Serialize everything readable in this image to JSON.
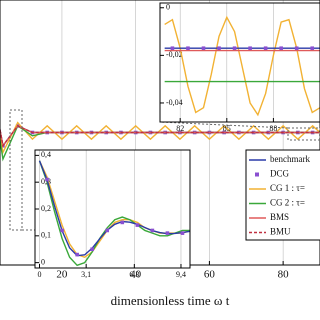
{
  "chart_data": [
    {
      "type": "line",
      "xlabel": "dimensionless time ω t",
      "xlim": [
        3.2,
        90
      ],
      "ylim": [
        -0.2,
        0.2
      ],
      "xticks": [
        20,
        40,
        60,
        80
      ],
      "legend": "lower right",
      "x": [
        0,
        4,
        8,
        12,
        16,
        20,
        24,
        28,
        32,
        36,
        40,
        44,
        48,
        52,
        56,
        60,
        64,
        68,
        72,
        76,
        80,
        84,
        88,
        92
      ],
      "series": [
        {
          "name": "benchmark",
          "color": "#2a3aa8",
          "values": [
            0.1,
            -0.02,
            0.01,
            0,
            0,
            0,
            0,
            0,
            0,
            0,
            0,
            0,
            0,
            0,
            0,
            0,
            0,
            0,
            0,
            0,
            0,
            0,
            0,
            0
          ]
        },
        {
          "name": "DCG",
          "color": "#8a4fd0",
          "marker": "square",
          "values": [
            0.1,
            -0.02,
            0.01,
            0,
            0,
            0,
            0,
            0,
            0,
            0,
            0,
            0,
            0,
            0,
            0,
            0,
            0,
            0,
            0,
            0,
            0,
            0,
            0,
            0
          ]
        },
        {
          "name": "CG 1 : τ=",
          "color": "#f2b233",
          "values": [
            0.1,
            -0.03,
            0.015,
            -0.01,
            0.01,
            -0.01,
            0.01,
            -0.01,
            0.01,
            -0.01,
            0.01,
            -0.01,
            0.01,
            -0.01,
            0.01,
            -0.01,
            0.01,
            -0.01,
            0.01,
            -0.01,
            0.01,
            -0.01,
            0.01,
            -0.01
          ]
        },
        {
          "name": "CG 2 : τ=",
          "color": "#3aa83a",
          "values": [
            0.1,
            -0.04,
            0.01,
            -0.005,
            0,
            0,
            0,
            0,
            0,
            0,
            0,
            0,
            0,
            0,
            0,
            0,
            0,
            0,
            0,
            0,
            0,
            0,
            0,
            0
          ]
        },
        {
          "name": "BMS",
          "color": "#e05a5a",
          "values": [
            0.1,
            -0.02,
            0.01,
            0,
            0,
            0,
            0,
            0,
            0,
            0,
            0,
            0,
            0,
            0,
            0,
            0,
            0,
            0,
            0,
            0,
            0,
            0,
            0,
            0
          ]
        },
        {
          "name": "BMU",
          "color": "#c03040",
          "dash": true,
          "values": [
            0.1,
            -0.02,
            0.01,
            0,
            0,
            0,
            0,
            0,
            0,
            0,
            0,
            0,
            0,
            0,
            0,
            0,
            0,
            0,
            0,
            0,
            0,
            0,
            0,
            0
          ]
        }
      ]
    },
    {
      "type": "line",
      "xlim": [
        -0.3,
        10
      ],
      "ylim": [
        -0.02,
        0.42
      ],
      "xticks": [
        0,
        {
          "value": 3.1,
          "label": "3,1"
        },
        {
          "value": 6.3,
          "label": "6,3"
        },
        {
          "value": 9.4,
          "label": "9,4"
        }
      ],
      "yticks": [
        0,
        {
          "value": 0.1,
          "label": "0,1"
        },
        {
          "value": 0.2,
          "label": "0,2"
        },
        {
          "value": 0.3,
          "label": "0,3"
        },
        {
          "value": 0.4,
          "label": "0,4"
        }
      ],
      "x": [
        0,
        0.5,
        1,
        1.5,
        2,
        2.5,
        3,
        3.5,
        4,
        4.5,
        5,
        5.5,
        6,
        6.5,
        7,
        7.5,
        8,
        8.5,
        9,
        9.5,
        10
      ],
      "series": [
        {
          "color": "#f2b233",
          "values": [
            0.38,
            0.32,
            0.23,
            0.14,
            0.07,
            0.03,
            0.02,
            0.04,
            0.08,
            0.12,
            0.15,
            0.16,
            0.16,
            0.15,
            0.13,
            0.12,
            0.11,
            0.11,
            0.11,
            0.11,
            0.12
          ]
        },
        {
          "color": "#3aa83a",
          "values": [
            0.38,
            0.3,
            0.19,
            0.09,
            0.02,
            -0.01,
            0,
            0.04,
            0.09,
            0.13,
            0.16,
            0.17,
            0.16,
            0.14,
            0.12,
            0.11,
            0.1,
            0.1,
            0.11,
            0.12,
            0.12
          ]
        },
        {
          "color": "#2a3aa8",
          "values": [
            0.38,
            0.309,
            0.211,
            0.119,
            0.055,
            0.026,
            0.029,
            0.054,
            0.089,
            0.121,
            0.143,
            0.153,
            0.151,
            0.143,
            0.131,
            0.119,
            0.112,
            0.108,
            0.109,
            0.112,
            0.117
          ]
        },
        {
          "color": "#8a4fd0",
          "marker": "square",
          "x": [
            0.5,
            1.5,
            2.5,
            3.5,
            4.5,
            5.5,
            6.5,
            7.5,
            8.5,
            9.5
          ],
          "values": [
            0.31,
            0.12,
            0.03,
            0.05,
            0.12,
            0.15,
            0.14,
            0.12,
            0.11,
            0.11
          ]
        }
      ]
    },
    {
      "type": "line",
      "xlim": [
        80.7,
        91
      ],
      "ylim": [
        -0.048,
        0.002
      ],
      "xticks": [
        82,
        85,
        88
      ],
      "yticks": [
        0,
        {
          "value": -0.02,
          "label": "-0,02"
        },
        {
          "value": -0.04,
          "label": "-0,04"
        }
      ],
      "x": [
        81,
        81.5,
        82,
        82.5,
        83,
        83.5,
        84,
        84.5,
        85,
        85.5,
        86,
        86.5,
        87,
        87.5,
        88,
        88.5,
        89,
        89.5,
        90,
        90.5,
        91
      ],
      "series": [
        {
          "color": "#f2b233",
          "values": [
            -0.007,
            -0.005,
            -0.017,
            -0.033,
            -0.044,
            -0.042,
            -0.028,
            -0.012,
            -0.004,
            -0.01,
            -0.025,
            -0.04,
            -0.045,
            -0.036,
            -0.02,
            -0.006,
            -0.005,
            -0.017,
            -0.034,
            -0.044,
            -0.042
          ]
        },
        {
          "color": "#3aa83a",
          "values": [
            -0.031,
            -0.031,
            -0.031,
            -0.031,
            -0.031,
            -0.031,
            -0.031,
            -0.031,
            -0.031,
            -0.031,
            -0.031,
            -0.031,
            -0.031,
            -0.031,
            -0.031,
            -0.031,
            -0.031,
            -0.031,
            -0.031,
            -0.031,
            -0.031
          ]
        },
        {
          "color": "#e05a5a",
          "values": [
            -0.018,
            -0.018,
            -0.018,
            -0.018,
            -0.018,
            -0.018,
            -0.018,
            -0.018,
            -0.018,
            -0.018,
            -0.018,
            -0.018,
            -0.018,
            -0.018,
            -0.018,
            -0.018,
            -0.018,
            -0.018,
            -0.018,
            -0.018,
            -0.018
          ]
        },
        {
          "color": "#2a3aa8",
          "values": [
            -0.017,
            -0.017,
            -0.017,
            -0.017,
            -0.017,
            -0.017,
            -0.017,
            -0.017,
            -0.017,
            -0.017,
            -0.017,
            -0.017,
            -0.017,
            -0.017,
            -0.017,
            -0.017,
            -0.017,
            -0.017,
            -0.017,
            -0.017,
            -0.017
          ]
        },
        {
          "color": "#8a4fd0",
          "marker": "square",
          "x": [
            81.5,
            82.5,
            83.5,
            84.5,
            85.5,
            86.5,
            87.5,
            88.5,
            89.5,
            90.5
          ],
          "values": [
            -0.017,
            -0.017,
            -0.017,
            -0.017,
            -0.017,
            -0.017,
            -0.017,
            -0.017,
            -0.017,
            -0.017
          ]
        }
      ]
    }
  ]
}
